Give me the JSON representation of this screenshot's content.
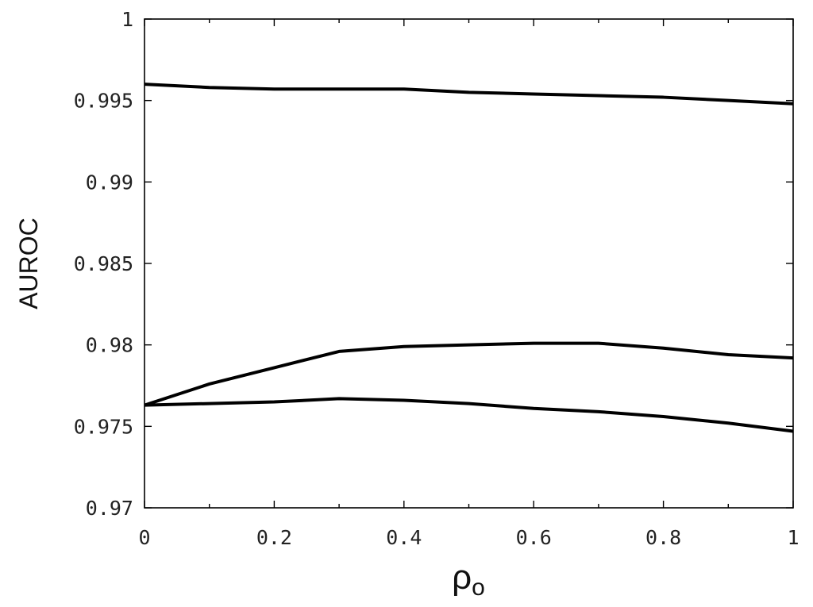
{
  "chart_data": {
    "type": "line",
    "title": "",
    "xlabel": "ρ",
    "xlabel_subscript": "o",
    "ylabel": "AUROC",
    "xlim": [
      0,
      1
    ],
    "ylim": [
      0.97,
      1
    ],
    "x_ticks": [
      0,
      0.2,
      0.4,
      0.6,
      0.8,
      1
    ],
    "x_tick_labels": [
      "0",
      "0.2",
      "0.4",
      "0.6",
      "0.8",
      "1"
    ],
    "y_ticks": [
      0.97,
      0.975,
      0.98,
      0.985,
      0.99,
      0.995,
      1
    ],
    "y_tick_labels": [
      "0.97",
      "0.975",
      "0.98",
      "0.985",
      "0.99",
      "0.995",
      "1"
    ],
    "x_minor_step": 0.1,
    "grid": false,
    "x": [
      0,
      0.1,
      0.2,
      0.3,
      0.4,
      0.5,
      0.6,
      0.7,
      0.8,
      0.9,
      1.0
    ],
    "series": [
      {
        "values": [
          0.996,
          0.9958,
          0.9957,
          0.9957,
          0.9957,
          0.9955,
          0.9954,
          0.9953,
          0.9952,
          0.995,
          0.9948
        ]
      },
      {
        "values": [
          0.9763,
          0.9776,
          0.9786,
          0.9796,
          0.9799,
          0.98,
          0.9801,
          0.9801,
          0.9798,
          0.9794,
          0.9792
        ]
      },
      {
        "values": [
          0.9763,
          0.9764,
          0.9765,
          0.9767,
          0.9766,
          0.9764,
          0.9761,
          0.9759,
          0.9756,
          0.9752,
          0.9747
        ]
      }
    ],
    "line_color": "#000000"
  }
}
